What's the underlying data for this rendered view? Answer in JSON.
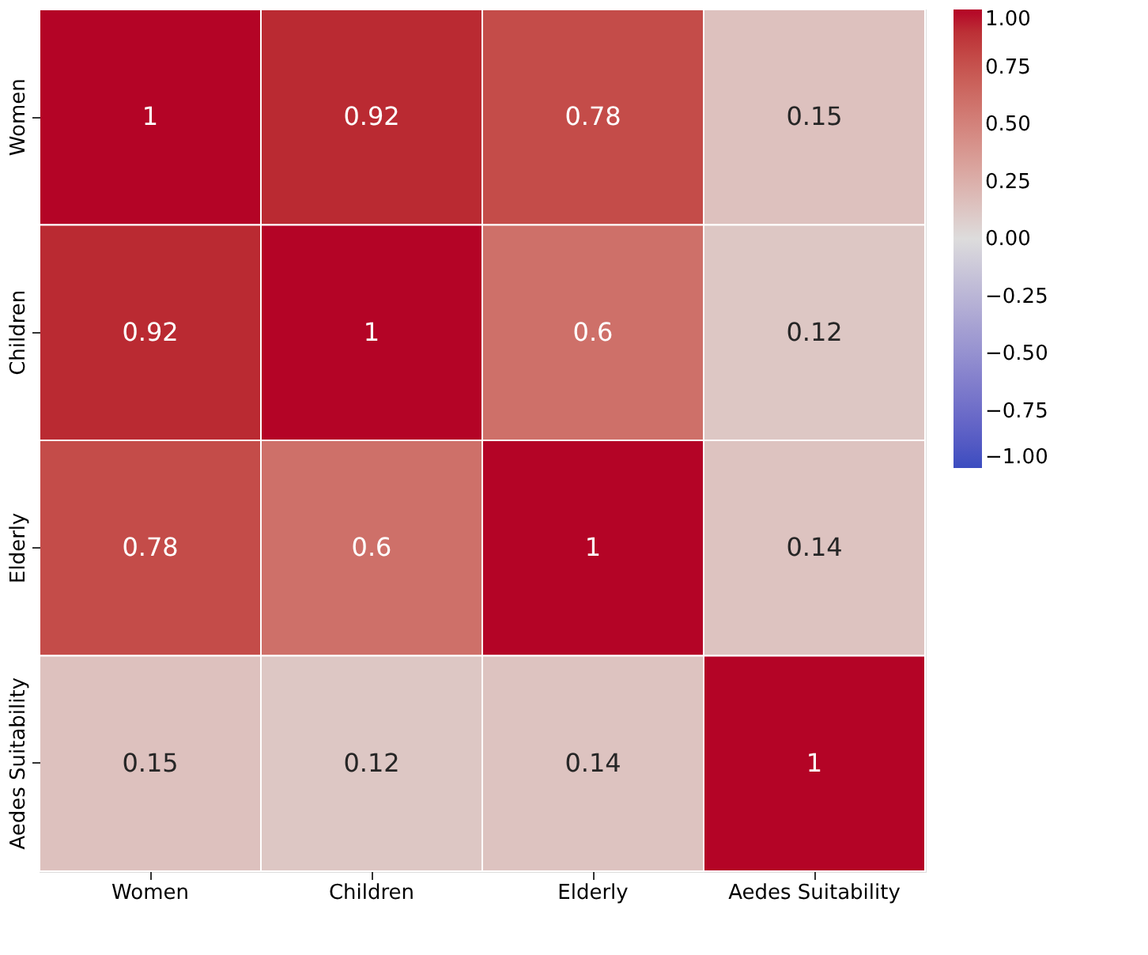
{
  "chart_data": {
    "type": "heatmap",
    "categories": [
      "Women",
      "Children",
      "Elderly",
      "Aedes Suitability"
    ],
    "y_categories": [
      "Women",
      "Children",
      "Elderly",
      "Aedes Suitability"
    ],
    "cells": [
      [
        1,
        0.92,
        0.78,
        0.15
      ],
      [
        0.92,
        1,
        0.6,
        0.12
      ],
      [
        0.78,
        0.6,
        1,
        0.14
      ],
      [
        0.15,
        0.12,
        0.14,
        1
      ]
    ],
    "cell_labels": [
      [
        "1",
        "0.92",
        "0.78",
        "0.15"
      ],
      [
        "0.92",
        "1",
        "0.6",
        "0.12"
      ],
      [
        "0.78",
        "0.6",
        "1",
        "0.14"
      ],
      [
        "0.15",
        "0.12",
        "0.14",
        "1"
      ]
    ],
    "clim": [
      -1,
      1
    ],
    "cticks": [
      {
        "value": -1,
        "label": "−1.00"
      },
      {
        "value": -0.75,
        "label": "−0.75"
      },
      {
        "value": -0.5,
        "label": "−0.50"
      },
      {
        "value": -0.25,
        "label": "−0.25"
      },
      {
        "value": 0,
        "label": "0.00"
      },
      {
        "value": 0.25,
        "label": "0.25"
      },
      {
        "value": 0.5,
        "label": "0.50"
      },
      {
        "value": 0.75,
        "label": "0.75"
      },
      {
        "value": 1,
        "label": "1.00"
      }
    ]
  }
}
